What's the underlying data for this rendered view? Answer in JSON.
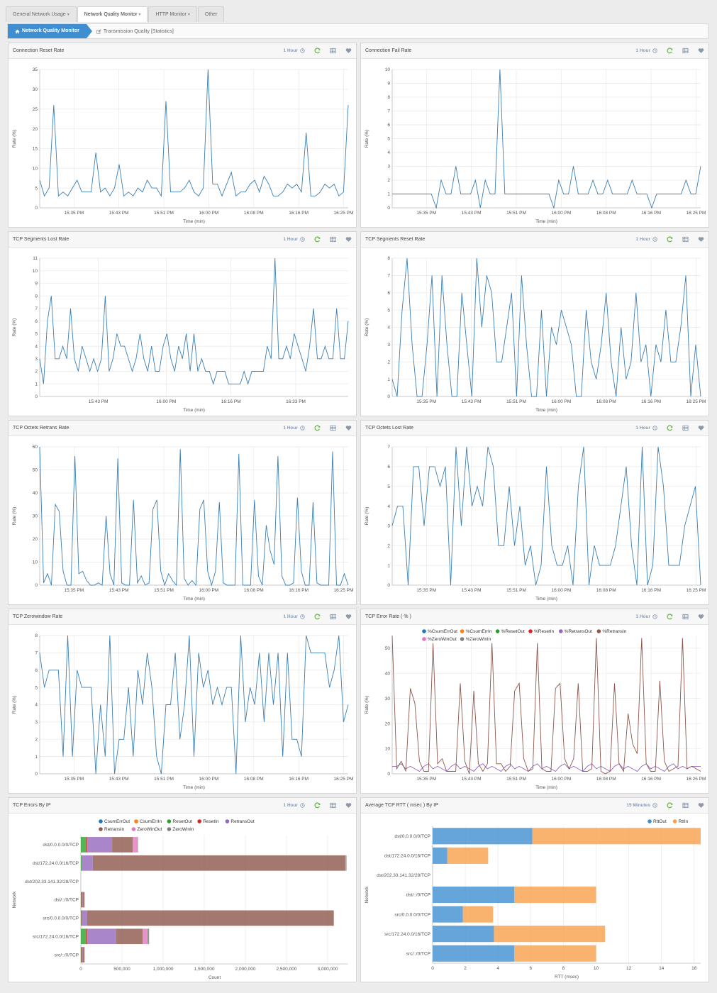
{
  "tabs": [
    {
      "label": "General Network Usage",
      "caret": true,
      "active": false
    },
    {
      "label": "Network Quality Monitor",
      "caret": true,
      "active": true
    },
    {
      "label": "HTTP Monitor",
      "caret": true,
      "active": false
    },
    {
      "label": "Other",
      "caret": false,
      "active": false
    }
  ],
  "breadcrumb": {
    "home": "Network Quality Monitor",
    "current": "Transmission Quality [Statistics]"
  },
  "colors": {
    "line": "#3a7fb5",
    "accent": "#3f8ed1",
    "refresh": "#6ab04c"
  },
  "chart_data": [
    {
      "panel": "connection-reset-rate",
      "title": "Connection Reset Rate",
      "time_range": "1 Hour",
      "type": "line",
      "xlabel": "Time (min)",
      "ylabel": "Rate (%)",
      "ylim": [
        0,
        35
      ],
      "yticks": [
        0,
        5,
        10,
        15,
        20,
        25,
        30,
        35
      ],
      "xtick_labels": [
        "15:35 PM",
        "15:43 PM",
        "15:51 PM",
        "16:00 PM",
        "16:08 PM",
        "16:16 PM",
        "16:25 PM"
      ],
      "grid": true,
      "values": [
        7,
        3,
        5,
        26,
        3,
        4,
        3,
        5,
        7,
        4,
        4,
        4,
        14,
        4,
        5,
        3,
        5,
        11,
        3,
        4,
        3,
        5,
        4,
        7,
        5,
        5,
        3,
        27,
        4,
        4,
        4,
        5,
        7,
        4,
        3,
        5,
        35,
        6,
        6,
        3,
        6,
        9,
        3,
        4,
        4,
        6,
        7,
        4,
        8,
        6,
        3,
        3,
        4,
        6,
        5,
        6,
        4,
        19,
        3,
        3,
        4,
        6,
        5,
        6,
        3,
        4,
        26
      ]
    },
    {
      "panel": "connection-fail-rate",
      "title": "Connection Fail Rate",
      "time_range": "1 Hour",
      "type": "line",
      "xlabel": "Time (min)",
      "ylabel": "Rate (%)",
      "ylim": [
        0,
        10
      ],
      "yticks": [
        0,
        1,
        2,
        3,
        4,
        5,
        6,
        7,
        8,
        9,
        10
      ],
      "xtick_labels": [
        "15:35 PM",
        "15:43 PM",
        "15:51 PM",
        "16:00 PM",
        "16:08 PM",
        "16:16 PM",
        "16:25 PM"
      ],
      "grid": true,
      "values": [
        1,
        1,
        1,
        1,
        1,
        1,
        1,
        1,
        1,
        0,
        2,
        1,
        1,
        3,
        1,
        1,
        1,
        2,
        0,
        2,
        1,
        1,
        10,
        1,
        1,
        1,
        1,
        1,
        1,
        1,
        1,
        1,
        1,
        0,
        2,
        1,
        1,
        3,
        1,
        1,
        1,
        2,
        1,
        1,
        2,
        1,
        1,
        1,
        1,
        2,
        1,
        1,
        1,
        0,
        1,
        1,
        1,
        1,
        1,
        1,
        2,
        1,
        1,
        3
      ]
    },
    {
      "panel": "tcp-segments-lost-rate",
      "title": "TCP Segments Lost Rate",
      "time_range": "1 Hour",
      "type": "line",
      "xlabel": "Time (min)",
      "ylabel": "Rate (%)",
      "ylim": [
        0,
        11
      ],
      "yticks": [
        0,
        1,
        2,
        3,
        4,
        5,
        6,
        7,
        8,
        9,
        10,
        11
      ],
      "xtick_labels": [
        "15:43 PM",
        "16:00 PM",
        "16:16 PM",
        "16:33 PM"
      ],
      "xtick_pos": [
        0.19,
        0.41,
        0.62,
        0.83
      ],
      "grid": true,
      "values": [
        3,
        1,
        6,
        8,
        3,
        3,
        4,
        3,
        7,
        3,
        2,
        4,
        3,
        2,
        3,
        2,
        3,
        8,
        2,
        3,
        5,
        4,
        4,
        3,
        2,
        3,
        5,
        3,
        2,
        4,
        2,
        2,
        4,
        5,
        3,
        2,
        4,
        3,
        5,
        2,
        5,
        2,
        3,
        2,
        2,
        1,
        2,
        2,
        2,
        1,
        1,
        1,
        1,
        2,
        1,
        2,
        2,
        2,
        2,
        4,
        3,
        11,
        3,
        3,
        4,
        3,
        5,
        4,
        3,
        2,
        4,
        7,
        3,
        3,
        4,
        3,
        3,
        7,
        3,
        3,
        6
      ]
    },
    {
      "panel": "tcp-segments-reset-rate",
      "title": "TCP Segments Reset Rate",
      "time_range": "1 Hour",
      "type": "line",
      "xlabel": "Time (min)",
      "ylabel": "Rate (%)",
      "ylim": [
        0,
        8
      ],
      "yticks": [
        0,
        1,
        2,
        3,
        4,
        5,
        6,
        7,
        8
      ],
      "xtick_labels": [
        "15:35 PM",
        "15:43 PM",
        "15:51 PM",
        "16:00 PM",
        "16:08 PM",
        "16:16 PM",
        "16:25 PM"
      ],
      "grid": true,
      "values": [
        1,
        0,
        5,
        8,
        3,
        0,
        0,
        3,
        7,
        0,
        7,
        3,
        0,
        0,
        6,
        3,
        0,
        8,
        4,
        7,
        6,
        2,
        2,
        4,
        6,
        0,
        7,
        3,
        0,
        0,
        5,
        0,
        4,
        3,
        5,
        4,
        3,
        0,
        0,
        5,
        2,
        1,
        3,
        6,
        2,
        0,
        4,
        1,
        2,
        6,
        2,
        3,
        0,
        3,
        2,
        5,
        2,
        2,
        4,
        7,
        0,
        3,
        0
      ]
    },
    {
      "panel": "tcp-octets-retrans-rate",
      "title": "TCP Octets Retrans Rate",
      "time_range": "1 Hour",
      "type": "line",
      "xlabel": "Time (min)",
      "ylabel": "Rate (%)",
      "ylim": [
        0,
        60
      ],
      "yticks": [
        0,
        10,
        20,
        30,
        40,
        50,
        60
      ],
      "xtick_labels": [
        "15:35 PM",
        "15:43 PM",
        "15:51 PM",
        "16:00 PM",
        "16:08 PM",
        "16:16 PM",
        "16:25 PM"
      ],
      "grid": true,
      "values": [
        60,
        1,
        5,
        0,
        35,
        32,
        6,
        0,
        0,
        56,
        5,
        6,
        2,
        0,
        0,
        1,
        0,
        30,
        5,
        0,
        55,
        1,
        0,
        0,
        37,
        1,
        4,
        0,
        1,
        33,
        37,
        6,
        0,
        5,
        2,
        0,
        59,
        3,
        0,
        2,
        0,
        33,
        37,
        6,
        0,
        6,
        36,
        1,
        0,
        0,
        0,
        57,
        0,
        0,
        0,
        37,
        4,
        0,
        26,
        15,
        9,
        56,
        4,
        0,
        0,
        1,
        38,
        6,
        0,
        0,
        36,
        1,
        0,
        0,
        0,
        58,
        0,
        0,
        5,
        0
      ]
    },
    {
      "panel": "tcp-octets-lost-rate",
      "title": "TCP Octets Lost Rate",
      "time_range": "1 Hour",
      "type": "line",
      "xlabel": "Time (min)",
      "ylabel": "Rate (%)",
      "ylim": [
        0,
        7
      ],
      "yticks": [
        0,
        1,
        2,
        3,
        4,
        5,
        6,
        7
      ],
      "xtick_labels": [
        "15:35 PM",
        "15:43 PM",
        "15:51 PM",
        "16:00 PM",
        "16:08 PM",
        "16:16 PM",
        "16:25 PM"
      ],
      "grid": true,
      "values": [
        3,
        4,
        4,
        0,
        6,
        6,
        3,
        6,
        6,
        5,
        6,
        0,
        7,
        3,
        7,
        4,
        5,
        4,
        7,
        6,
        2,
        2,
        5,
        2,
        4,
        1,
        2,
        0,
        1,
        6,
        2,
        1,
        1,
        2,
        0,
        5,
        7,
        0,
        2,
        1,
        1,
        1,
        2,
        4,
        6,
        2,
        0,
        7,
        0,
        1,
        7,
        5,
        1,
        1,
        1,
        3,
        4,
        5,
        0
      ]
    },
    {
      "panel": "tcp-zerowindow-rate",
      "title": "TCP Zerowindow Rate",
      "time_range": "1 Hour",
      "type": "line",
      "xlabel": "Time (min)",
      "ylabel": "Rate (%)",
      "ylim": [
        0,
        8
      ],
      "yticks": [
        0,
        1,
        2,
        3,
        4,
        5,
        6,
        7,
        8
      ],
      "xtick_labels": [
        "15:35 PM",
        "15:43 PM",
        "15:51 PM",
        "16:00 PM",
        "16:08 PM",
        "16:16 PM",
        "16:25 PM"
      ],
      "grid": true,
      "values": [
        7,
        5,
        6,
        6,
        6,
        1,
        8,
        1,
        6,
        5,
        5,
        5,
        0,
        4,
        1,
        8,
        0,
        2,
        2,
        5,
        1,
        6,
        4,
        7,
        5,
        1,
        0,
        4,
        4,
        7,
        2,
        4,
        8,
        1,
        7,
        5,
        6,
        4,
        5,
        4,
        5,
        5,
        0,
        8,
        3,
        5,
        4,
        7,
        3,
        7,
        4,
        7,
        1,
        7,
        2,
        2,
        1,
        8,
        7,
        7,
        7,
        7,
        5,
        6,
        8,
        3,
        4
      ]
    },
    {
      "panel": "tcp-error-rate",
      "title": "TCP Error Rate ( % )",
      "time_range": "1 Hour",
      "type": "line",
      "xlabel": "Time (min)",
      "ylabel": "Rate (%)",
      "ylim": [
        0,
        55
      ],
      "yticks": [
        0,
        10,
        20,
        30,
        40,
        50
      ],
      "xtick_labels": [
        "15:35 PM",
        "15:43 PM",
        "15:51 PM",
        "16:00 PM",
        "16:08 PM",
        "16:16 PM",
        "16:25 PM"
      ],
      "grid": true,
      "series": [
        {
          "name": "%CsumErrOut",
          "color": "#1f77b4",
          "values": []
        },
        {
          "name": "%CsumErrIn",
          "color": "#ff7f0e",
          "values": []
        },
        {
          "name": "%ResetOut",
          "color": "#2ca02c",
          "values": []
        },
        {
          "name": "%ResetIn",
          "color": "#d62728",
          "values": []
        },
        {
          "name": "%RetransOut",
          "color": "#9467bd",
          "values": [
            3,
            3,
            4,
            2,
            3,
            2,
            1,
            3,
            4,
            2,
            3,
            2,
            1,
            3,
            4,
            2,
            3,
            2,
            1,
            3,
            4,
            2,
            3,
            2,
            1,
            3,
            4,
            2,
            3,
            2,
            1,
            3,
            4,
            2,
            3,
            2,
            1,
            3,
            4,
            2,
            3,
            2,
            1,
            3,
            4,
            2,
            3,
            2,
            1,
            3,
            4,
            2,
            3,
            2,
            1,
            3,
            4,
            2,
            3,
            2,
            1,
            3,
            4,
            2,
            3,
            2,
            3,
            3,
            3
          ]
        },
        {
          "name": "%RetransIn",
          "color": "#8c564b",
          "values": [
            55,
            2,
            5,
            1,
            34,
            28,
            5,
            1,
            1,
            52,
            4,
            6,
            1,
            1,
            1,
            36,
            5,
            0,
            33,
            4,
            1,
            4,
            52,
            4,
            4,
            1,
            3,
            33,
            36,
            6,
            1,
            2,
            52,
            2,
            1,
            1,
            34,
            36,
            6,
            2,
            6,
            36,
            1,
            1,
            2,
            54,
            1,
            0,
            1,
            36,
            4,
            1,
            24,
            12,
            8,
            54,
            4,
            1,
            1,
            37,
            5,
            1,
            2,
            3,
            54,
            2,
            3,
            2,
            1
          ]
        },
        {
          "name": "%ZeroWinOut",
          "color": "#e377c2",
          "values": []
        },
        {
          "name": "%ZeroWinIn",
          "color": "#7f7f7f",
          "values": []
        }
      ]
    },
    {
      "panel": "tcp-errors-by-ip",
      "title": "TCP Errors By IP",
      "time_range": "1 Hour",
      "type": "bar",
      "orientation": "horizontal",
      "stacked": true,
      "xlabel": "Count",
      "ylabel": "Network",
      "xlim": [
        0,
        3250000
      ],
      "xticks": [
        0,
        500000,
        1000000,
        1500000,
        2000000,
        2500000,
        3000000
      ],
      "xtick_labels": [
        "0",
        "500,000",
        "1,000,000",
        "1,500,000",
        "2,000,000",
        "2,500,000",
        "3,000,000"
      ],
      "grid": true,
      "categories": [
        "dst/0.0.0.0/0/TCP",
        "dst/172.24.0.0/16/TCP",
        "dst/202.33.141.32/28/TCP",
        "dst/::/0/TCP",
        "src/0.0.0.0/0/TCP",
        "src/172.24.0.0/16/TCP",
        "src/::/0/TCP"
      ],
      "series": [
        {
          "name": "CsumErrOut",
          "color": "#1f77b4",
          "values": [
            0,
            0,
            0,
            0,
            0,
            0,
            0
          ]
        },
        {
          "name": "CsumErrIn",
          "color": "#ff7f0e",
          "values": [
            0,
            0,
            0,
            0,
            0,
            0,
            0
          ]
        },
        {
          "name": "ResetOut",
          "color": "#2ca02c",
          "values": [
            60000,
            10000,
            0,
            5000,
            5000,
            60000,
            5000
          ]
        },
        {
          "name": "ResetIn",
          "color": "#d62728",
          "values": [
            20000,
            5000,
            0,
            15000,
            10000,
            20000,
            15000
          ]
        },
        {
          "name": "RetransOut",
          "color": "#9467bd",
          "values": [
            300000,
            130000,
            0,
            5000,
            60000,
            350000,
            5000
          ]
        },
        {
          "name": "RetransIn",
          "color": "#8c564b",
          "values": [
            250000,
            3070000,
            0,
            20000,
            3000000,
            320000,
            20000
          ]
        },
        {
          "name": "ZeroWinOut",
          "color": "#e377c2",
          "values": [
            60000,
            10000,
            0,
            0,
            0,
            60000,
            0
          ]
        },
        {
          "name": "ZeroWinIn",
          "color": "#7f7f7f",
          "values": [
            5000,
            5000,
            0,
            0,
            0,
            20000,
            0
          ]
        }
      ]
    },
    {
      "panel": "average-tcp-rtt-by-ip",
      "title": "Average TCP RTT ( msec ) By IP",
      "time_range": "15 Minutes",
      "type": "bar",
      "orientation": "horizontal",
      "stacked": true,
      "xlabel": "RTT (msec)",
      "ylabel": "Network",
      "xlim": [
        0,
        16.4
      ],
      "xticks": [
        0,
        2,
        4,
        6,
        8,
        10,
        12,
        14,
        16
      ],
      "xtick_labels": [
        "0",
        "2",
        "4",
        "6",
        "8",
        "10",
        "12",
        "14",
        "16"
      ],
      "grid": true,
      "categories": [
        "dst/0.0.0.0/0/TCP",
        "dst/172.24.0.0/16/TCP",
        "dst/202.33.141.32/28/TCP",
        "dst/::/0/TCP",
        "src/0.0.0.0/0/TCP",
        "src/172.24.0.0/16/TCP",
        "src/::/0/TCP"
      ],
      "series": [
        {
          "name": "RttOut",
          "color": "#3f8ed1",
          "values": [
            6.1,
            0.9,
            0,
            5.0,
            1.85,
            3.75,
            5.0
          ]
        },
        {
          "name": "RttIn",
          "color": "#f7a04a",
          "values": [
            10.3,
            2.5,
            0,
            5.0,
            1.85,
            6.8,
            5.0
          ]
        }
      ]
    }
  ]
}
